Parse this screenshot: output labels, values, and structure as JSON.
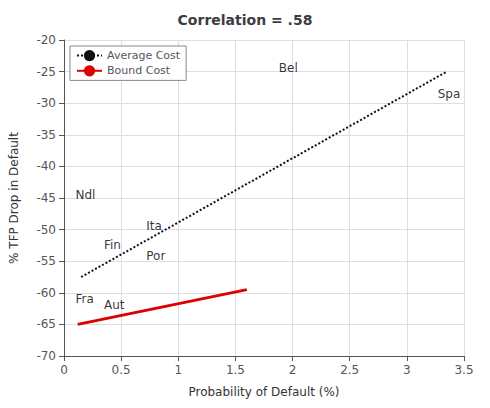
{
  "chart_data": {
    "type": "line",
    "title": "Correlation = .58",
    "xlabel": "Probability of Default (%)",
    "ylabel": "% TFP Drop in Default",
    "xlim": [
      0,
      3.5
    ],
    "ylim": [
      -70,
      -20
    ],
    "xticks": [
      0,
      0.5,
      1,
      1.5,
      2,
      2.5,
      3,
      3.5
    ],
    "yticks": [
      -70,
      -65,
      -60,
      -55,
      -50,
      -45,
      -40,
      -35,
      -30,
      -25,
      -20
    ],
    "grid": true,
    "legend": "upper left",
    "series": [
      {
        "name": "Average Cost",
        "color": "#111111",
        "line_style": "dotted",
        "x": [
          0.15,
          3.35
        ],
        "values": [
          -57.5,
          -25.0
        ]
      },
      {
        "name": "Bound Cost",
        "color": "#dd0000",
        "line_style": "solid",
        "x": [
          0.12,
          1.6
        ],
        "values": [
          -65.0,
          -59.5
        ]
      }
    ],
    "annotations": [
      {
        "text": "Bel",
        "x": 1.88,
        "y": -24.5
      },
      {
        "text": "Spa",
        "x": 3.27,
        "y": -28.5
      },
      {
        "text": "Ndl",
        "x": 0.1,
        "y": -44.5
      },
      {
        "text": "Ita",
        "x": 0.72,
        "y": -49.5
      },
      {
        "text": "Fin",
        "x": 0.35,
        "y": -52.5
      },
      {
        "text": "Por",
        "x": 0.72,
        "y": -54.2
      },
      {
        "text": "Fra",
        "x": 0.1,
        "y": -61.0
      },
      {
        "text": "Aut",
        "x": 0.35,
        "y": -62.0
      }
    ]
  }
}
